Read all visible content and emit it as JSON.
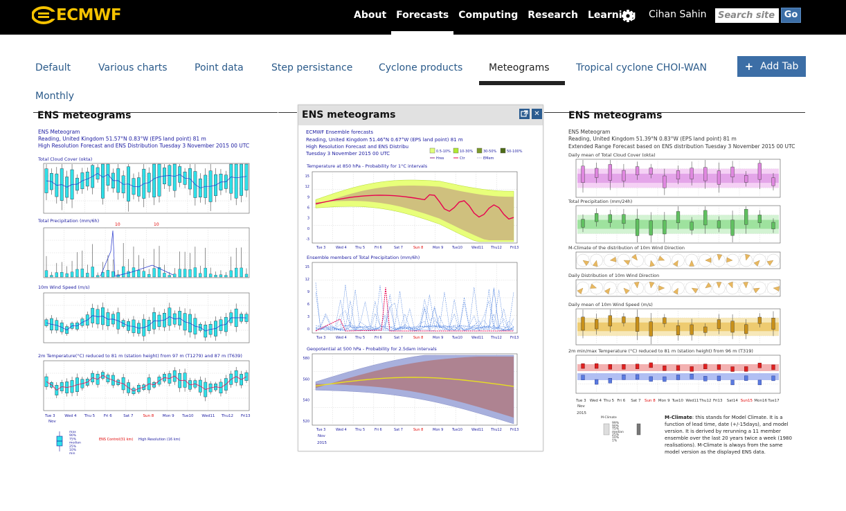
{
  "brand": {
    "name": "ECMWF"
  },
  "nav": {
    "items": [
      {
        "label": "About"
      },
      {
        "label": "Forecasts"
      },
      {
        "label": "Computing"
      },
      {
        "label": "Research"
      },
      {
        "label": "Learning"
      }
    ],
    "active": "Forecasts",
    "user": "Cihan Sahin",
    "search_placeholder": "Search site",
    "go_label": "Go"
  },
  "tabs": [
    {
      "label": "Default"
    },
    {
      "label": "Various charts"
    },
    {
      "label": "Point data"
    },
    {
      "label": "Step persistance"
    },
    {
      "label": "Cyclone products"
    },
    {
      "label": "Meteograms"
    },
    {
      "label": "Tropical cyclone CHOI-WAN"
    },
    {
      "label": "Monthly"
    }
  ],
  "active_tab": "Meteograms",
  "add_tab_label": "Add Tab",
  "widgets": {
    "left": {
      "title": "ENS meteograms",
      "header": [
        "ENS Meteogram",
        "Reading, United Kingdom 51.57°N 0.83°W (EPS land point) 81 m",
        "High Resolution Forecast and ENS Distribution Tuesday  3 November 2015 00 UTC"
      ],
      "panels": [
        "Total Cloud Cover (okta)",
        "Total Precipitation (mm/6h)",
        "10m Wind Speed (m/s)",
        "2m Temperature(°C) reduced to 81 m (station height) from 97 m (T1279) and 87 m (T639)"
      ],
      "days": [
        "Tue 3",
        "Wed 4",
        "Thu 5",
        "Fri 6",
        "Sat 7",
        "Sun 8",
        "Mon 9",
        "Tue10",
        "Wed11",
        "Thu12",
        "Fri13"
      ],
      "month": "Nov",
      "legend_box": [
        "max",
        "90%",
        "75%",
        "median",
        "25%",
        "10%",
        "min"
      ],
      "legend_lines": [
        "ENS Control(31 km)",
        "High Resolution (16 km)"
      ],
      "precip_off_scale": [
        "10",
        "10"
      ]
    },
    "middle": {
      "title": "ENS meteograms",
      "header": [
        "ECMWF Ensemble forecasts",
        "Reading, United Kingdom 51.46°N 0.67°W (EPS land point) 81 m",
        "High Resolution Forecast and ENS Distribu",
        "Tuesday  3 November 2015 00 UTC"
      ],
      "legend_pct": [
        "0.5-10%",
        "10-30%",
        "30-50%",
        "50-100%"
      ],
      "legend_lines": [
        "Hres",
        "Ctr",
        "EMem"
      ],
      "panels": [
        "Temperature at 850 hPa - Probability for 1°C intervals",
        "Ensemble members of Total Precipitation (mm/6h)",
        "Geopotential at 500 hPa - Probability for 2.5dam intervals"
      ],
      "y_ticks_temp": [
        "15",
        "12",
        "9",
        "6",
        "3",
        "0",
        "-3"
      ],
      "y_ticks_precip": [
        "15",
        "12",
        "9",
        "6",
        "3",
        "0"
      ],
      "y_ticks_geo": [
        "580",
        "560",
        "540",
        "520"
      ],
      "days": [
        "Tue 3",
        "Wed 4",
        "Thu 5",
        "Fri 6",
        "Sat 7",
        "Sun 8",
        "Mon 9",
        "Tue10",
        "Wed11",
        "Thu12",
        "Fri13"
      ],
      "month": "Nov",
      "year": "2015"
    },
    "right": {
      "title": "ENS meteograms",
      "header": [
        "ENS Meteogram",
        "Reading, United Kingdom 51.39°N 0.83°W (EPS land point) 81 m",
        "Extended Range Forecast based on ENS distribution Tuesday  3 November 2015 00 UTC"
      ],
      "panels": [
        "Daily mean of Total Cloud Cover (okta)",
        "Total Precipitation (mm/24h)",
        "M-Climate of the distribution of 10m Wind Direction",
        "Daily Distribution of 10m Wind Direction",
        "Daily mean of 10m Wind Speed (m/s)",
        "2m min/max Temperature (°C) reduced to 81 m (station height) from 96 m (T319)"
      ],
      "days": [
        "Tue 3",
        "Wed 4",
        "Thu 5",
        "Fri 6",
        "Sat 7",
        "Sun 8",
        "Mon 9",
        "Tue10",
        "Wed11",
        "Thu12",
        "Fri13",
        "Sat14",
        "Sun15",
        "Mon16",
        "Tue17"
      ],
      "month": "Nov",
      "year": "2015",
      "note_lead": "M-Climate",
      "note": ": this stands for Model Climate. It is a function of lead time, date (+/-15days), and model version. It is derived by rerunning a 11 member ensemble over the last 20 years twice a week (1980 realisations). M-Climate is always from the same model version as the displayed ENS data.",
      "mclimate_legend": [
        "M-Climate",
        "99%",
        "90%",
        "75%",
        "median",
        "25%",
        "10%",
        "1%"
      ]
    }
  },
  "colors": {
    "brand_yellow": "#f5c200",
    "nav_bg": "#000000",
    "link": "#2a5a8a",
    "button": "#3c6ea6",
    "cyan_box": "#2fe0e8",
    "ens_red": "#e8004f",
    "hres_blue": "#2233cc"
  }
}
